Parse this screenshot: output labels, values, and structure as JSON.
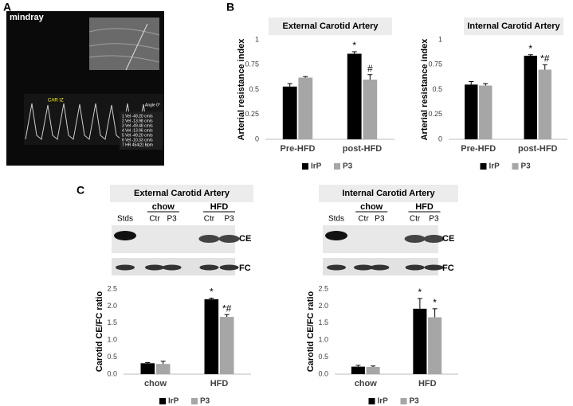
{
  "panel_labels": [
    "A",
    "B",
    "C"
  ],
  "ultrasound": {
    "brand": "mindray",
    "trace_label": "CAR IZ",
    "angle": "Angle 0°",
    "measurements": [
      "1 Vel -49.20 cm/s",
      "2 Vel -13.98 cm/s",
      "3 Vel -49.48 cm/s",
      "4 Vel -13.96 cm/s",
      "5 Vel -49.20 cm/s",
      "6 Vel -10.33 cm/s",
      "7 HR 454(2) Bpm"
    ]
  },
  "blots": [
    {
      "stds": "Stds",
      "groups": [
        "chow",
        "HFD"
      ],
      "lanes": [
        "Ctr",
        "P3",
        "Ctr",
        "P3"
      ],
      "bands": [
        "CE",
        "FC"
      ]
    },
    {
      "stds": "Stds",
      "groups": [
        "chow",
        "HFD"
      ],
      "lanes": [
        "Ctr",
        "P3",
        "Ctr",
        "P3"
      ],
      "bands": [
        "CE",
        "FC"
      ]
    }
  ],
  "chart_data": [
    {
      "type": "bar",
      "title": "External Carotid Artery",
      "y_label": "Arterial resistance index",
      "categories": [
        "Pre-HFD",
        "post-HFD"
      ],
      "series": [
        {
          "name": "IrP",
          "color": "#000000",
          "values": [
            0.53,
            0.86
          ],
          "errors": [
            0.03,
            0.02
          ],
          "markers": [
            null,
            "*"
          ]
        },
        {
          "name": "P3",
          "color": "#a6a6a6",
          "values": [
            0.62,
            0.6
          ],
          "errors": [
            0.01,
            0.05
          ],
          "markers": [
            null,
            "#"
          ]
        }
      ],
      "ylim": [
        0,
        1
      ],
      "yticks": [
        0,
        0.25,
        0.5,
        0.75,
        1
      ],
      "legend": "bottom"
    },
    {
      "type": "bar",
      "title": "Internal Carotid Artery",
      "y_label": "Arterial resistance index",
      "categories": [
        "Pre-HFD",
        "post-HFD"
      ],
      "series": [
        {
          "name": "IrP",
          "color": "#000000",
          "values": [
            0.55,
            0.84
          ],
          "errors": [
            0.03,
            0.01
          ],
          "markers": [
            null,
            "*"
          ]
        },
        {
          "name": "P3",
          "color": "#a6a6a6",
          "values": [
            0.54,
            0.7
          ],
          "errors": [
            0.02,
            0.05
          ],
          "markers": [
            null,
            "*#"
          ]
        }
      ],
      "ylim": [
        0,
        1
      ],
      "yticks": [
        0,
        0.25,
        0.5,
        0.75,
        1
      ],
      "legend": "bottom"
    },
    {
      "type": "bar",
      "title": "External Carotid Artery",
      "y_label": "Carotid CE/FC ratio",
      "categories": [
        "chow",
        "HFD"
      ],
      "series": [
        {
          "name": "IrP",
          "color": "#000000",
          "values": [
            0.32,
            2.2
          ],
          "errors": [
            0.02,
            0.03
          ],
          "markers": [
            null,
            "*"
          ]
        },
        {
          "name": "P3",
          "color": "#a6a6a6",
          "values": [
            0.3,
            1.68
          ],
          "errors": [
            0.08,
            0.07
          ],
          "markers": [
            null,
            "*#"
          ]
        }
      ],
      "ylim": [
        0,
        2.5
      ],
      "yticks": [
        {
          "value": 0,
          "label": "0.0"
        },
        {
          "value": 0.5,
          "label": "0.5"
        },
        {
          "value": 1,
          "label": "1.0"
        },
        {
          "value": 1.5,
          "label": "1.5"
        },
        {
          "value": 2,
          "label": "2.0"
        },
        {
          "value": 2.5,
          "label": "2.5"
        }
      ],
      "legend": "bottom"
    },
    {
      "type": "bar",
      "title": "Internal Carotid Artery",
      "y_label": "Carotid CE/FC ratio",
      "categories": [
        "chow",
        "HFD"
      ],
      "series": [
        {
          "name": "IrP",
          "color": "#000000",
          "values": [
            0.22,
            1.92
          ],
          "errors": [
            0.04,
            0.3
          ],
          "markers": [
            null,
            "*"
          ]
        },
        {
          "name": "P3",
          "color": "#a6a6a6",
          "values": [
            0.21,
            1.67
          ],
          "errors": [
            0.03,
            0.25
          ],
          "markers": [
            null,
            "*"
          ]
        }
      ],
      "ylim": [
        0,
        2.5
      ],
      "yticks": [
        {
          "value": 0,
          "label": "0.0"
        },
        {
          "value": 0.5,
          "label": "0.5"
        },
        {
          "value": 1,
          "label": "1.0"
        },
        {
          "value": 1.5,
          "label": "1.5"
        },
        {
          "value": 2,
          "label": "2.0"
        },
        {
          "value": 2.5,
          "label": "2.5"
        }
      ],
      "legend": "bottom"
    }
  ]
}
